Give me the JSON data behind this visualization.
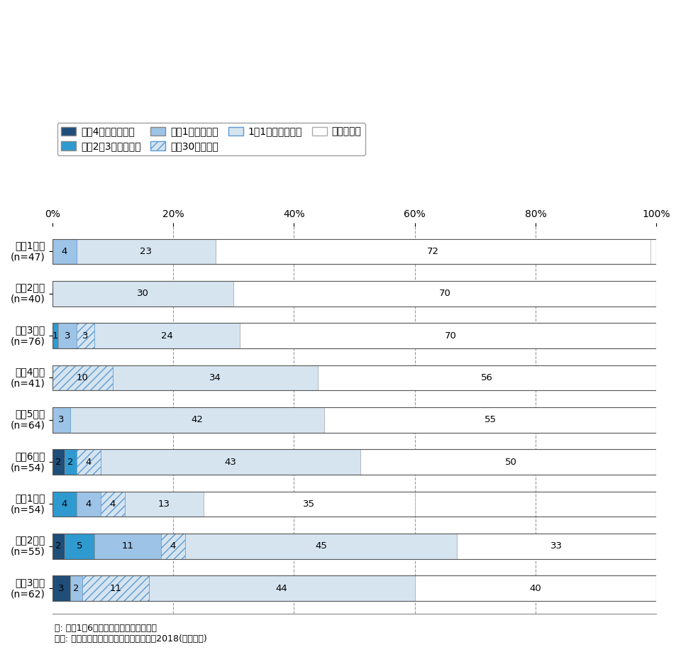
{
  "categories": [
    "小学1年生\n(n=47)",
    "小学2年生\n(n=40)",
    "小学3年生\n(n=76)",
    "小学4年生\n(n=41)",
    "小学5年生\n(n=64)",
    "小学6年生\n(n=54)",
    "中学1年生\n(n=54)",
    "中学2年生\n(n=55)",
    "中学3年生\n(n=62)"
  ],
  "series": [
    {
      "label": "毎日4時間より多い",
      "values": [
        0,
        0,
        0,
        0,
        0,
        2,
        0,
        2,
        3
      ],
      "color": "#1f4e79",
      "hatch": null
    },
    {
      "label": "毎日2〜3時間くらい",
      "values": [
        0,
        0,
        1,
        0,
        0,
        2,
        4,
        5,
        0
      ],
      "color": "#2e9ad0",
      "hatch": null
    },
    {
      "label": "毎日1時間くらい",
      "values": [
        4,
        0,
        3,
        0,
        3,
        0,
        4,
        11,
        2
      ],
      "color": "#9dc3e6",
      "hatch": null
    },
    {
      "label": "毎日30分くらい",
      "values": [
        0,
        0,
        3,
        10,
        0,
        4,
        4,
        4,
        11
      ],
      "color": "#d6e4f0",
      "hatch": "///",
      "hatch_color": "#5b9bd5"
    },
    {
      "label": "1日1回より少ない",
      "values": [
        23,
        30,
        24,
        34,
        42,
        43,
        13,
        45,
        44
      ],
      "color": "#d6e4f0",
      "hatch": "===",
      "hatch_color": "#5b9bd5"
    },
    {
      "label": "していない",
      "values": [
        72,
        70,
        70,
        56,
        55,
        50,
        35,
        33,
        40
      ],
      "color": "#ffffff",
      "hatch": null,
      "edge_color": "#aaaaaa"
    }
  ],
  "note": "注: 関東1都6県在住の小中学生が回答。\n出所: 子どものケータイ利用に関する調査2018(訪問留置)",
  "xlim": [
    0,
    100
  ],
  "xticks": [
    0,
    20,
    40,
    60,
    80,
    100
  ],
  "xticklabels": [
    "0%",
    "20%",
    "40%",
    "60%",
    "80%",
    "100%"
  ],
  "bar_height": 0.6,
  "background_color": "#ffffff",
  "legend_fontsize": 10,
  "tick_fontsize": 10,
  "label_fontsize": 9.5
}
